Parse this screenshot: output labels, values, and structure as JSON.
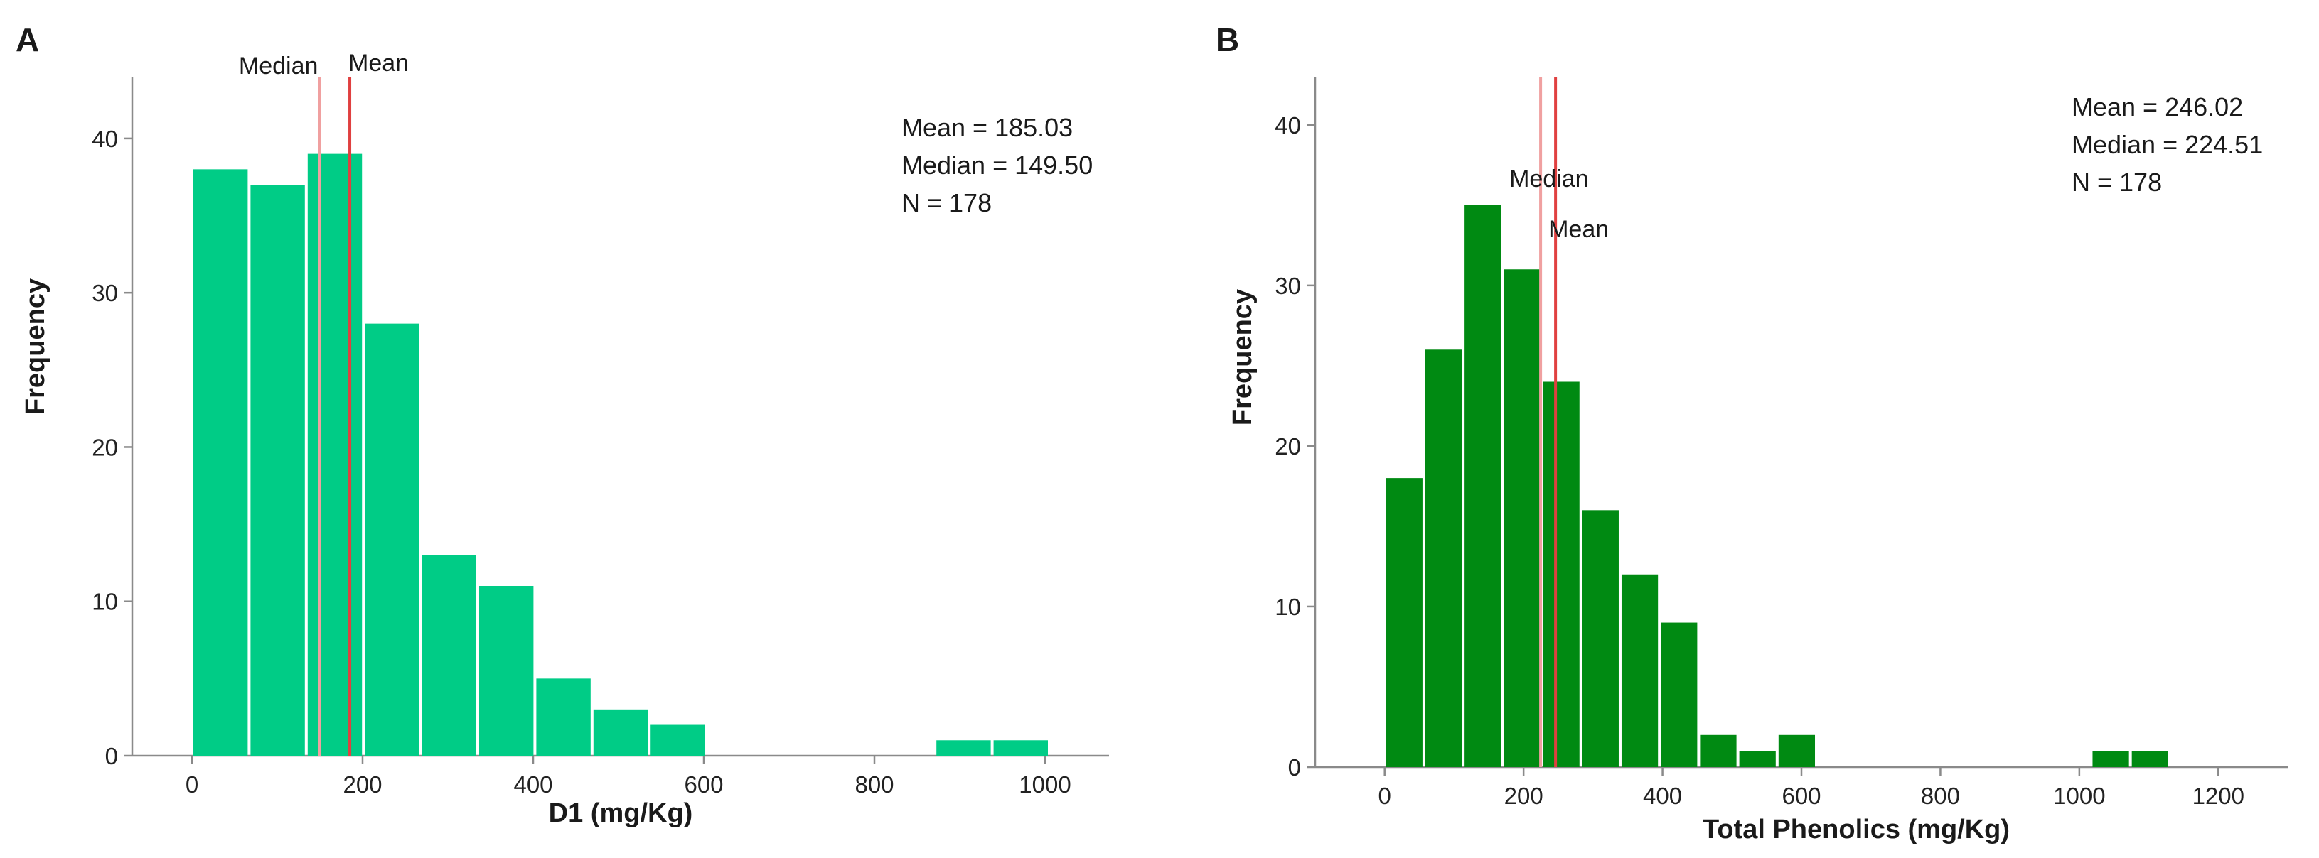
{
  "chart_data": [
    {
      "type": "bar",
      "panel": "A",
      "xlabel": "D1 (mg/Kg)",
      "ylabel": "Frequency",
      "xlim": [
        -70,
        1075
      ],
      "ylim": [
        0,
        44
      ],
      "xticks": [
        0,
        200,
        400,
        600,
        800,
        1000
      ],
      "yticks": [
        0,
        10,
        20,
        30,
        40
      ],
      "bin_width": 67,
      "bins": [
        {
          "start": 0,
          "end": 67,
          "count": 38
        },
        {
          "start": 67,
          "end": 134,
          "count": 37
        },
        {
          "start": 134,
          "end": 201,
          "count": 39
        },
        {
          "start": 201,
          "end": 268,
          "count": 28
        },
        {
          "start": 268,
          "end": 335,
          "count": 13
        },
        {
          "start": 335,
          "end": 402,
          "count": 11
        },
        {
          "start": 402,
          "end": 469,
          "count": 5
        },
        {
          "start": 469,
          "end": 536,
          "count": 3
        },
        {
          "start": 536,
          "end": 603,
          "count": 2
        },
        {
          "start": 871,
          "end": 938,
          "count": 1
        },
        {
          "start": 938,
          "end": 1005,
          "count": 1
        }
      ],
      "bar_color": "#00cc86",
      "median_value": 149.5,
      "mean_value": 185.03,
      "median_line_color": "#f0a0a0",
      "mean_line_color": "#e04040",
      "median_label": "Median",
      "mean_label": "Mean",
      "stats_lines": [
        "Mean = 185.03",
        "Median = 149.50",
        "N = 178"
      ]
    },
    {
      "type": "bar",
      "panel": "B",
      "xlabel": "Total Phenolics (mg/Kg)",
      "ylabel": "Frequency",
      "xlim": [
        -100,
        1300
      ],
      "ylim": [
        0,
        43
      ],
      "xticks": [
        0,
        200,
        400,
        600,
        800,
        1000,
        1200
      ],
      "yticks": [
        0,
        10,
        20,
        30,
        40
      ],
      "bin_width": 56.5,
      "bins": [
        {
          "start": 0,
          "end": 56.5,
          "count": 18
        },
        {
          "start": 56.5,
          "end": 113,
          "count": 26
        },
        {
          "start": 113,
          "end": 169.5,
          "count": 35
        },
        {
          "start": 169.5,
          "end": 226,
          "count": 31
        },
        {
          "start": 226,
          "end": 282.5,
          "count": 24
        },
        {
          "start": 282.5,
          "end": 339,
          "count": 16
        },
        {
          "start": 339,
          "end": 395.5,
          "count": 12
        },
        {
          "start": 395.5,
          "end": 452,
          "count": 9
        },
        {
          "start": 452,
          "end": 508.5,
          "count": 2
        },
        {
          "start": 508.5,
          "end": 565,
          "count": 1
        },
        {
          "start": 565,
          "end": 621.5,
          "count": 2
        },
        {
          "start": 1017,
          "end": 1073.5,
          "count": 1
        },
        {
          "start": 1073.5,
          "end": 1130,
          "count": 1
        }
      ],
      "bar_color": "#008a12",
      "median_value": 224.51,
      "mean_value": 246.02,
      "median_line_color": "#f0a0a0",
      "mean_line_color": "#e04040",
      "median_label": "Median",
      "mean_label": "Mean",
      "stats_lines": [
        "Mean = 246.02",
        "Median = 224.51",
        "N = 178"
      ]
    }
  ]
}
